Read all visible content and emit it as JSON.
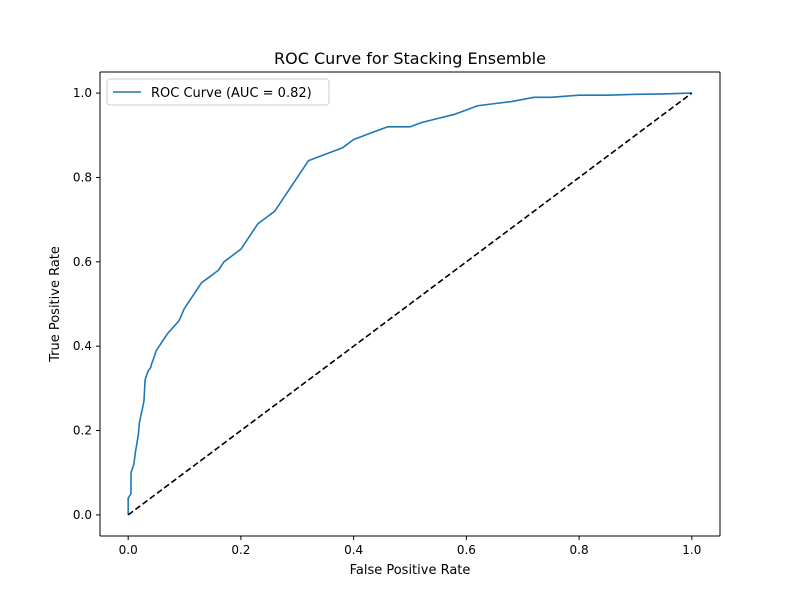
{
  "chart_data": {
    "type": "line",
    "title": "ROC Curve for Stacking Ensemble",
    "xlabel": "False Positive Rate",
    "ylabel": "True Positive Rate",
    "xlim": [
      -0.05,
      1.05
    ],
    "ylim": [
      -0.05,
      1.05
    ],
    "xticks": [
      "0.0",
      "0.2",
      "0.4",
      "0.6",
      "0.8",
      "1.0"
    ],
    "yticks": [
      "0.0",
      "0.2",
      "0.4",
      "0.6",
      "0.8",
      "1.0"
    ],
    "grid": false,
    "legend_position": "top-left",
    "series": [
      {
        "name": "ROC Curve (AUC = 0.82)",
        "color": "#1f77b4",
        "style": "solid",
        "x": [
          0.0,
          0.0,
          0.005,
          0.005,
          0.01,
          0.013,
          0.018,
          0.02,
          0.025,
          0.028,
          0.03,
          0.035,
          0.04,
          0.042,
          0.045,
          0.05,
          0.055,
          0.06,
          0.07,
          0.08,
          0.09,
          0.1,
          0.11,
          0.12,
          0.13,
          0.14,
          0.15,
          0.16,
          0.17,
          0.18,
          0.19,
          0.2,
          0.21,
          0.22,
          0.23,
          0.24,
          0.25,
          0.26,
          0.27,
          0.28,
          0.29,
          0.3,
          0.31,
          0.32,
          0.34,
          0.36,
          0.38,
          0.4,
          0.42,
          0.44,
          0.46,
          0.5,
          0.52,
          0.55,
          0.58,
          0.6,
          0.62,
          0.65,
          0.68,
          0.7,
          0.72,
          0.75,
          0.8,
          0.85,
          0.9,
          0.95,
          1.0
        ],
        "y": [
          0.0,
          0.04,
          0.05,
          0.1,
          0.12,
          0.15,
          0.19,
          0.22,
          0.25,
          0.27,
          0.32,
          0.34,
          0.35,
          0.36,
          0.37,
          0.39,
          0.4,
          0.41,
          0.43,
          0.445,
          0.46,
          0.49,
          0.51,
          0.53,
          0.55,
          0.56,
          0.57,
          0.58,
          0.6,
          0.61,
          0.62,
          0.63,
          0.65,
          0.67,
          0.69,
          0.7,
          0.71,
          0.72,
          0.74,
          0.76,
          0.78,
          0.8,
          0.82,
          0.84,
          0.85,
          0.86,
          0.87,
          0.89,
          0.9,
          0.91,
          0.92,
          0.92,
          0.93,
          0.94,
          0.95,
          0.96,
          0.97,
          0.975,
          0.98,
          0.985,
          0.99,
          0.99,
          0.995,
          0.995,
          0.997,
          0.998,
          1.0
        ]
      },
      {
        "name": "",
        "color": "#000000",
        "style": "dashed",
        "x": [
          0.0,
          1.0
        ],
        "y": [
          0.0,
          1.0
        ]
      }
    ]
  }
}
